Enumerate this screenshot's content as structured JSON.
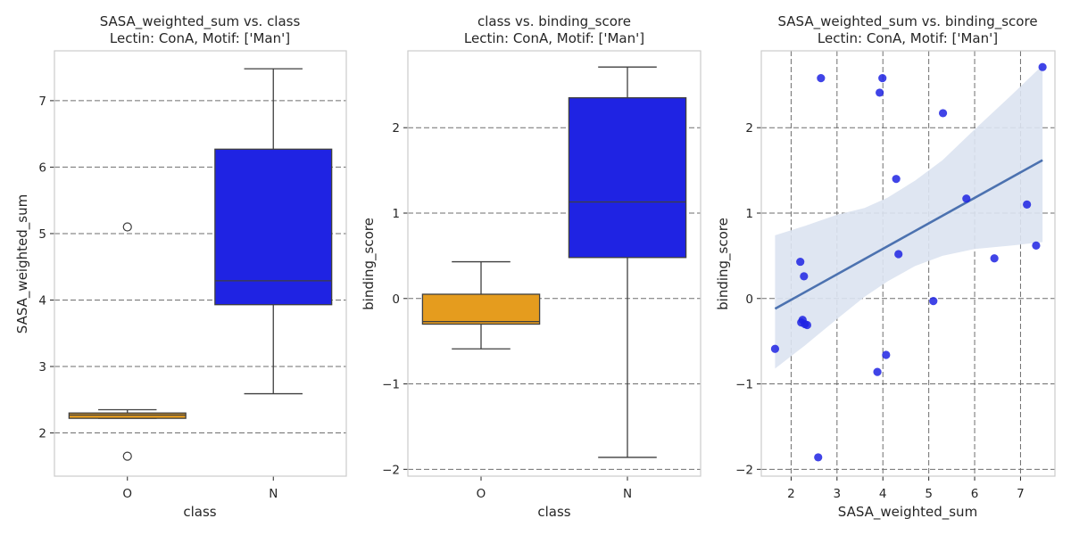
{
  "chart_data": [
    {
      "type": "box",
      "title": "SASA_weighted_sum vs. class",
      "subtitle": "Lectin: ConA, Motif: ['Man']",
      "xlabel": "class",
      "ylabel": "SASA_weighted_sum",
      "categories": [
        "O",
        "N"
      ],
      "ylim": [
        1.35,
        7.75
      ],
      "yticks": [
        2,
        3,
        4,
        5,
        6,
        7
      ],
      "grid": "horizontal-dashed",
      "boxes": [
        {
          "category": "O",
          "color": "#E59C1E",
          "whisker_low": 2.22,
          "q1": 2.22,
          "median": 2.27,
          "q3": 2.3,
          "whisker_high": 2.35,
          "outliers": [
            5.1,
            1.65
          ]
        },
        {
          "category": "N",
          "color": "#1F23E3",
          "whisker_low": 2.59,
          "q1": 3.93,
          "median": 4.29,
          "q3": 6.27,
          "whisker_high": 7.48,
          "outliers": []
        }
      ]
    },
    {
      "type": "box",
      "title": "class vs. binding_score",
      "subtitle": "Lectin: ConA, Motif: ['Man']",
      "xlabel": "class",
      "ylabel": "binding_score",
      "categories": [
        "O",
        "N"
      ],
      "ylim": [
        -2.08,
        2.9
      ],
      "yticks": [
        -2,
        -1,
        0,
        1,
        2
      ],
      "grid": "horizontal-dashed",
      "boxes": [
        {
          "category": "O",
          "color": "#E59C1E",
          "whisker_low": -0.59,
          "q1": -0.3,
          "median": -0.27,
          "q3": 0.05,
          "whisker_high": 0.43,
          "outliers": []
        },
        {
          "category": "N",
          "color": "#1F23E3",
          "whisker_low": -1.86,
          "q1": 0.48,
          "median": 1.13,
          "q3": 2.35,
          "whisker_high": 2.71,
          "outliers": []
        }
      ]
    },
    {
      "type": "scatter",
      "title": "SASA_weighted_sum vs. binding_score",
      "subtitle": "Lectin: ConA, Motif: ['Man']",
      "xlabel": "SASA_weighted_sum",
      "ylabel": "binding_score",
      "xlim": [
        1.35,
        7.75
      ],
      "ylim": [
        -2.08,
        2.9
      ],
      "xticks": [
        2,
        3,
        4,
        5,
        6,
        7
      ],
      "yticks": [
        -2,
        -1,
        0,
        1,
        2
      ],
      "grid": "both-dashed",
      "point_color": "#1F23E3",
      "line_color": "#4C72B0",
      "band_color": "#DCE3F1",
      "points": [
        {
          "x": 1.65,
          "y": -0.59
        },
        {
          "x": 2.2,
          "y": 0.43
        },
        {
          "x": 2.22,
          "y": -0.28
        },
        {
          "x": 2.25,
          "y": -0.25
        },
        {
          "x": 2.28,
          "y": 0.26
        },
        {
          "x": 2.3,
          "y": -0.3
        },
        {
          "x": 2.35,
          "y": -0.31
        },
        {
          "x": 2.59,
          "y": -1.86
        },
        {
          "x": 2.65,
          "y": 2.58
        },
        {
          "x": 3.88,
          "y": -0.86
        },
        {
          "x": 3.93,
          "y": 2.41
        },
        {
          "x": 3.99,
          "y": 2.58
        },
        {
          "x": 4.07,
          "y": -0.66
        },
        {
          "x": 4.29,
          "y": 1.4
        },
        {
          "x": 4.34,
          "y": 0.52
        },
        {
          "x": 5.1,
          "y": -0.03
        },
        {
          "x": 5.31,
          "y": 2.17
        },
        {
          "x": 5.82,
          "y": 1.17
        },
        {
          "x": 6.43,
          "y": 0.47
        },
        {
          "x": 7.14,
          "y": 1.1
        },
        {
          "x": 7.34,
          "y": 0.62
        },
        {
          "x": 7.48,
          "y": 2.71
        }
      ],
      "regression": {
        "x0": 1.65,
        "x1": 7.48,
        "y0": -0.12,
        "y1": 1.62
      },
      "ci_band": [
        {
          "x": 1.65,
          "lo": -0.82,
          "hi": 0.74
        },
        {
          "x": 2.3,
          "lo": -0.55,
          "hi": 0.85
        },
        {
          "x": 3.0,
          "lo": -0.24,
          "hi": 0.98
        },
        {
          "x": 3.6,
          "lo": 0.02,
          "hi": 1.06
        },
        {
          "x": 4.1,
          "lo": 0.2,
          "hi": 1.18
        },
        {
          "x": 4.7,
          "lo": 0.38,
          "hi": 1.38
        },
        {
          "x": 5.3,
          "lo": 0.5,
          "hi": 1.62
        },
        {
          "x": 6.0,
          "lo": 0.58,
          "hi": 1.98
        },
        {
          "x": 6.8,
          "lo": 0.62,
          "hi": 2.38
        },
        {
          "x": 7.48,
          "lo": 0.66,
          "hi": 2.73
        }
      ]
    }
  ]
}
